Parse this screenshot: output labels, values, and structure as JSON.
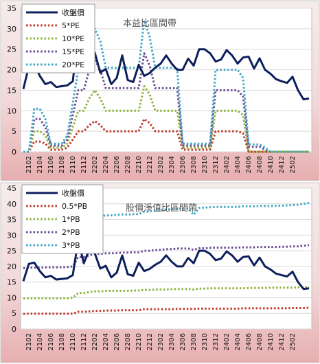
{
  "chart_data": [
    {
      "type": "line",
      "title": "本益比區間帶",
      "ylim": [
        0,
        35
      ],
      "yticks": [
        0,
        5,
        10,
        15,
        20,
        25,
        30,
        35
      ],
      "x_tick_labels": [
        "2102",
        "2104",
        "2106",
        "2108",
        "2110",
        "2112",
        "2202",
        "2204",
        "2206",
        "2208",
        "2210",
        "2212",
        "2302",
        "2304",
        "2306",
        "2308",
        "2310",
        "2312",
        "2402",
        "2404",
        "2406",
        "2408",
        "2410",
        "2412",
        "2502"
      ],
      "legend_position": "top-left",
      "series": [
        {
          "name": "收盤價",
          "color": "#0d1f5c",
          "style": "solid",
          "values": [
            15.3,
            20.8,
            21.2,
            18.5,
            16.5,
            17,
            15.8,
            16,
            16.2,
            17.2,
            28.5,
            21,
            25.3,
            24.2,
            19.3,
            20.2,
            16.5,
            18,
            23.5,
            17.5,
            17,
            21.2,
            18.5,
            19.2,
            20.5,
            21.5,
            23.5,
            21.5,
            20,
            20,
            22.7,
            21,
            25,
            25,
            24,
            22,
            22.5,
            24.8,
            23.5,
            21.5,
            23,
            23.2,
            20.3,
            22.8,
            20,
            19,
            17.7,
            17.2,
            16.8,
            18.3,
            15,
            12.8,
            13
          ]
        },
        {
          "name": "5*PE",
          "color": "#c0392b",
          "style": "dotted",
          "values": [
            0,
            0,
            2.5,
            2.5,
            2,
            0.5,
            0.5,
            0.5,
            1,
            3,
            5,
            5,
            6.5,
            7.5,
            6.5,
            5,
            5,
            5,
            5,
            5,
            5,
            5,
            8,
            7,
            5,
            5,
            5,
            5,
            5,
            0.5,
            0.5,
            0.5,
            0.5,
            0.5,
            0.5,
            5,
            5,
            5,
            5,
            5,
            4.5,
            0,
            0,
            0,
            0,
            0,
            0,
            0,
            0,
            0,
            0,
            0,
            0
          ]
        },
        {
          "name": "10*PE",
          "color": "#8db33a",
          "style": "dotted",
          "values": [
            0,
            0,
            5,
            5,
            4,
            1,
            1,
            1,
            2,
            6,
            10,
            10,
            13,
            15,
            13,
            10,
            10,
            10,
            10,
            10,
            10,
            10,
            16,
            14,
            10,
            10,
            10,
            10,
            10,
            1,
            1,
            1,
            1,
            1,
            1,
            10,
            10,
            10,
            10,
            10,
            9,
            0,
            0,
            0,
            0,
            0,
            0,
            0,
            0,
            0,
            0,
            0,
            0
          ]
        },
        {
          "name": "15*PE",
          "color": "#6a4c93",
          "style": "dotted",
          "values": [
            0,
            0,
            8,
            8,
            6,
            1.5,
            1.5,
            1.5,
            3,
            9,
            15,
            15,
            20,
            22.5,
            20,
            15.5,
            15.5,
            15.5,
            15.5,
            15.5,
            15.5,
            15.5,
            24,
            21,
            15.5,
            15.5,
            15.5,
            15.5,
            15.5,
            1.5,
            1.5,
            1.5,
            1.5,
            1.5,
            1.5,
            15,
            15,
            15,
            15,
            15,
            13.5,
            1.2,
            1.2,
            1.2,
            0.5,
            0,
            0,
            0,
            0,
            0,
            0,
            0,
            0
          ]
        },
        {
          "name": "20*PE",
          "color": "#3fa7c4",
          "style": "dotted",
          "values": [
            0,
            0,
            10.5,
            10.5,
            8,
            2,
            2,
            2,
            4,
            12,
            20,
            20,
            27,
            30,
            27,
            20.5,
            20.5,
            20.5,
            20.5,
            20.5,
            20.5,
            20.5,
            32,
            28,
            20.5,
            20.5,
            20.5,
            20.5,
            20.5,
            2,
            2,
            2,
            2,
            2,
            2,
            20,
            20,
            20,
            20,
            20,
            18,
            1.8,
            1.8,
            1.8,
            1,
            0,
            0,
            0,
            0,
            0,
            0,
            0,
            0
          ]
        }
      ]
    },
    {
      "type": "line",
      "title": "股價淨值比區間帶",
      "ylim": [
        0,
        45
      ],
      "yticks": [
        0,
        5,
        10,
        15,
        20,
        25,
        30,
        35,
        40,
        45
      ],
      "x_tick_labels": [
        "2102",
        "2104",
        "2106",
        "2108",
        "2110",
        "2112",
        "2202",
        "2204",
        "2206",
        "2208",
        "2210",
        "2212",
        "2302",
        "2304",
        "2306",
        "2308",
        "2310",
        "2312",
        "2402",
        "2404",
        "2406",
        "2408",
        "2410",
        "2412",
        "2502"
      ],
      "legend_position": "top-left",
      "series": [
        {
          "name": "收盤價",
          "color": "#0d1f5c",
          "style": "solid",
          "values": [
            15.3,
            20.8,
            21.2,
            18.5,
            16.5,
            17,
            15.8,
            16,
            16.2,
            17.2,
            28.5,
            21,
            25.3,
            24.2,
            19.3,
            20.2,
            16.5,
            18,
            23.5,
            17.5,
            17,
            21.2,
            18.5,
            19.2,
            20.5,
            21.5,
            23.5,
            21.5,
            20,
            20,
            22.7,
            21,
            25,
            25,
            24,
            22,
            22.5,
            24.8,
            23.5,
            21.5,
            23,
            23.2,
            20.3,
            22.8,
            20,
            19,
            17.7,
            17.2,
            16.8,
            18.3,
            15,
            12.8,
            13
          ]
        },
        {
          "name": "0.5*PB",
          "color": "#c0392b",
          "style": "dotted",
          "values": [
            4.8,
            4.9,
            4.9,
            4.9,
            4.9,
            4.9,
            4.9,
            4.9,
            4.9,
            4.9,
            5.5,
            5.5,
            5.6,
            5.8,
            5.8,
            5.9,
            5.9,
            5.9,
            6,
            6,
            6,
            6,
            6.3,
            6.3,
            6.3,
            6.3,
            6.3,
            6.3,
            6.4,
            6.4,
            6.4,
            6.4,
            6.5,
            6.5,
            6.5,
            6.5,
            6.5,
            6.5,
            6.5,
            6.5,
            6.6,
            6.6,
            6.6,
            6.6,
            6.6,
            6.6,
            6.6,
            6.6,
            6.6,
            6.7,
            6.7,
            6.7,
            6.8
          ]
        },
        {
          "name": "1*PB",
          "color": "#8db33a",
          "style": "dotted",
          "values": [
            9.7,
            9.8,
            9.8,
            9.8,
            9.8,
            9.8,
            9.8,
            9.8,
            9.8,
            10,
            11.5,
            11.5,
            11.8,
            12,
            12,
            12.2,
            12.2,
            12.2,
            12.2,
            12.2,
            12.3,
            12.3,
            12.5,
            12.5,
            12.6,
            12.6,
            12.6,
            12.7,
            12.8,
            12.8,
            12.8,
            12.6,
            12.9,
            12.9,
            13,
            13,
            13,
            13,
            13,
            13,
            13,
            13.1,
            13.1,
            13.1,
            13.1,
            13.2,
            13.2,
            13.2,
            13.2,
            13.2,
            13.3,
            13.3,
            13.5
          ]
        },
        {
          "name": "2*PB",
          "color": "#6a4c93",
          "style": "dotted",
          "values": [
            19.4,
            19.6,
            19.6,
            19.6,
            19.7,
            19.7,
            19.7,
            19.7,
            19.8,
            20,
            23,
            23,
            23.5,
            24,
            24,
            24.2,
            24.2,
            24.3,
            24.4,
            24.4,
            24.5,
            24.5,
            25,
            25,
            25.2,
            25.3,
            25.5,
            25.5,
            25.7,
            25.7,
            25.7,
            25.3,
            25.8,
            25.8,
            25.9,
            26,
            26,
            26,
            26,
            26,
            26.1,
            26.1,
            26.1,
            26.2,
            26.2,
            26.2,
            26.2,
            26.3,
            26.3,
            26.4,
            26.4,
            26.6,
            26.8
          ]
        },
        {
          "name": "3*PB",
          "color": "#3fa7c4",
          "style": "dotted",
          "values": [
            29,
            29.4,
            29.4,
            29.4,
            29.5,
            29.5,
            29.5,
            29.6,
            29.7,
            30,
            34.5,
            34.5,
            35.3,
            36,
            36,
            36.3,
            36.3,
            36.5,
            36.6,
            36.6,
            36.7,
            36.7,
            37.5,
            37.6,
            37.8,
            38,
            38.2,
            38.3,
            38.5,
            38.5,
            38.5,
            36.5,
            38.7,
            38.8,
            38.9,
            39,
            39,
            39,
            39,
            39,
            39.2,
            39.2,
            39.2,
            39.3,
            39.3,
            39.3,
            39.4,
            39.4,
            39.5,
            39.6,
            39.7,
            40,
            40.3
          ]
        }
      ]
    }
  ]
}
